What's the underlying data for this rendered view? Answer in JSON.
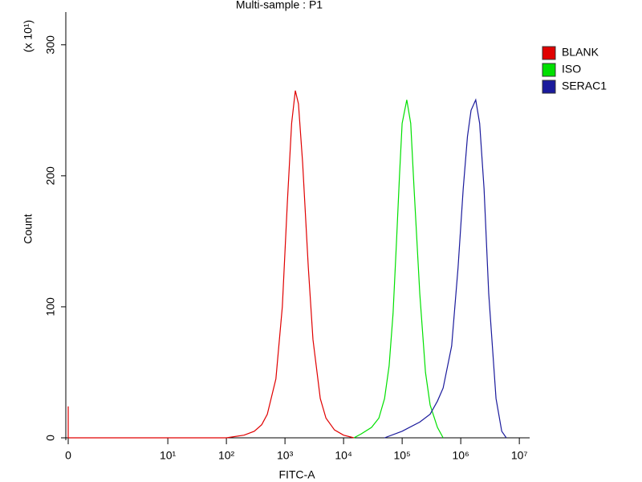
{
  "chart_data": {
    "type": "line",
    "title": "Multi-sample : P1",
    "x_label": "FITC-A",
    "y_label": "Count",
    "y_multiplier": "(x 10¹)",
    "xscale": "biexponential",
    "xlim": [
      0,
      15000000
    ],
    "xticks": [
      0,
      {
        "value": 10,
        "label": "10¹"
      },
      {
        "value": 100,
        "label": "10²"
      },
      {
        "value": 1000,
        "label": "10³"
      },
      {
        "value": 10000,
        "label": "10⁴"
      },
      {
        "value": 100000,
        "label": "10⁵"
      },
      {
        "value": 1000000,
        "label": "10⁶"
      },
      {
        "value": 10000000,
        "label": "10⁷"
      }
    ],
    "ylim": [
      0,
      325
    ],
    "yticks": [
      0,
      100,
      200,
      300
    ],
    "legend": "right",
    "series": [
      {
        "name": "BLANK",
        "color": "#e00000",
        "x": [
          0,
          0,
          100,
          200,
          300,
          400,
          500,
          700,
          900,
          1100,
          1300,
          1500,
          1700,
          2000,
          2500,
          3000,
          4000,
          5000,
          7000,
          10000,
          15000
        ],
        "values": [
          24,
          0,
          0,
          2,
          5,
          10,
          18,
          45,
          100,
          180,
          240,
          265,
          255,
          210,
          130,
          75,
          30,
          15,
          6,
          2,
          0
        ]
      },
      {
        "name": "ISO",
        "color": "#00e000",
        "x": [
          15000,
          20000,
          30000,
          40000,
          50000,
          60000,
          70000,
          80000,
          90000,
          100000,
          120000,
          140000,
          160000,
          200000,
          250000,
          300000,
          400000,
          500000
        ],
        "values": [
          0,
          3,
          8,
          15,
          30,
          55,
          95,
          150,
          200,
          240,
          258,
          240,
          190,
          110,
          50,
          25,
          8,
          0
        ]
      },
      {
        "name": "SERAC1",
        "color": "#1a1a9c",
        "x": [
          50000,
          100000,
          200000,
          300000,
          400000,
          500000,
          700000,
          900000,
          1100000,
          1300000,
          1500000,
          1800000,
          2100000,
          2500000,
          3000000,
          4000000,
          5000000,
          6000000
        ],
        "values": [
          0,
          5,
          12,
          18,
          28,
          38,
          70,
          130,
          190,
          230,
          250,
          258,
          240,
          190,
          110,
          30,
          5,
          0
        ]
      }
    ]
  }
}
